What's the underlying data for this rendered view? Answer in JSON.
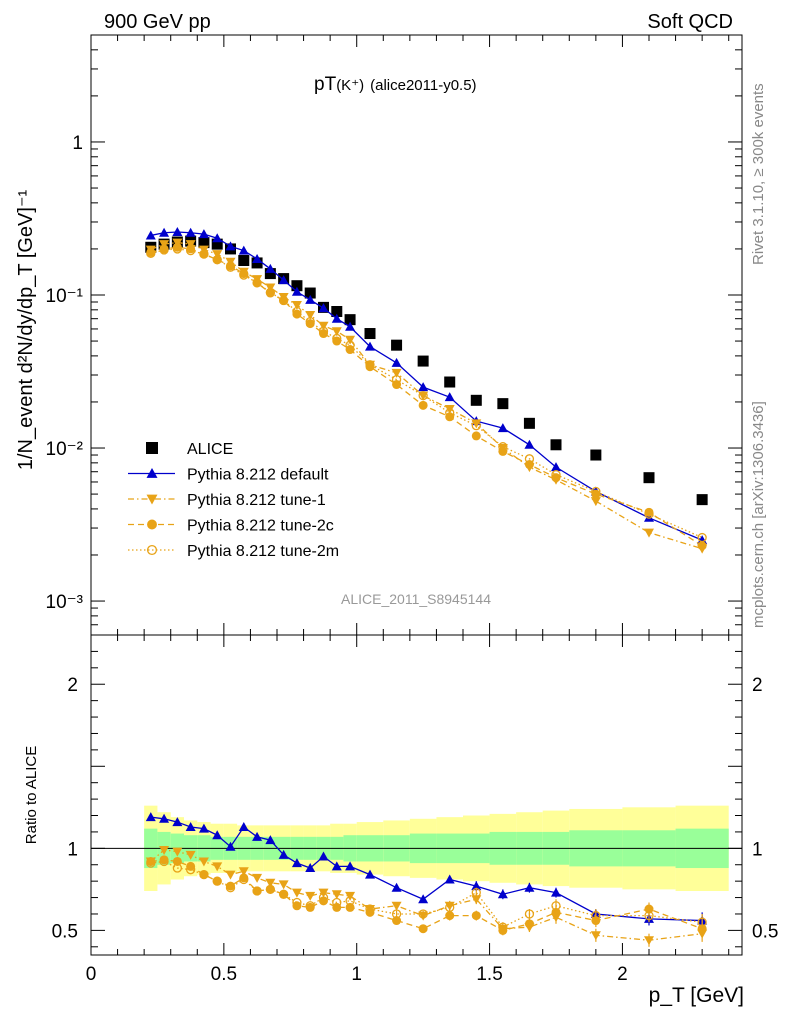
{
  "header": {
    "left": "900 GeV pp",
    "right": "Soft QCD"
  },
  "side_labels": {
    "rivet": "Rivet 3.1.10, ≥ 300k events",
    "mcplots": "mcplots.cern.ch [arXiv:1306.3436]"
  },
  "plot_title": {
    "main": "pT",
    "particle": "(K⁺)",
    "tag": "(alice2011-y0.5)"
  },
  "watermark": "ALICE_2011_S8945144",
  "axis_labels": {
    "y_top": "1/N_event d²N/dy/dp_T [GeV]⁻¹",
    "y_bottom": "Ratio to ALICE",
    "x": "p_T [GeV]"
  },
  "legend": [
    {
      "label": "ALICE",
      "marker": "square",
      "color": "#000000",
      "line": "none"
    },
    {
      "label": "Pythia 8.212 default",
      "marker": "triangle-up",
      "color": "#0000cc",
      "line": "solid"
    },
    {
      "label": "Pythia 8.212 tune-1",
      "marker": "triangle-down",
      "color": "#e8a317",
      "line": "dashdot"
    },
    {
      "label": "Pythia 8.212 tune-2c",
      "marker": "circle",
      "color": "#e8a317",
      "line": "dashed"
    },
    {
      "label": "Pythia 8.212 tune-2m",
      "marker": "circle-open",
      "color": "#e8a317",
      "line": "dotted"
    }
  ],
  "chart_data": [
    {
      "type": "scatter",
      "panel": "main",
      "yscale": "log",
      "xlim": [
        0,
        2.45
      ],
      "ylim": [
        0.0006,
        5
      ],
      "y_ticks": [
        {
          "v": 1,
          "label": "1"
        },
        {
          "v": 0.1,
          "label": "10⁻¹"
        },
        {
          "v": 0.01,
          "label": "10⁻²"
        },
        {
          "v": 0.001,
          "label": "10⁻³"
        }
      ],
      "x": [
        0.225,
        0.275,
        0.325,
        0.375,
        0.425,
        0.475,
        0.525,
        0.575,
        0.625,
        0.675,
        0.725,
        0.775,
        0.825,
        0.875,
        0.925,
        0.975,
        1.05,
        1.15,
        1.25,
        1.35,
        1.45,
        1.55,
        1.65,
        1.75,
        1.9,
        2.1,
        2.3
      ],
      "series": [
        {
          "name": "ALICE",
          "values": [
            0.205,
            0.215,
            0.222,
            0.225,
            0.22,
            0.215,
            0.2,
            0.168,
            0.162,
            0.138,
            0.128,
            0.115,
            0.103,
            0.083,
            0.078,
            0.069,
            0.056,
            0.047,
            0.037,
            0.027,
            0.0205,
            0.0195,
            0.0145,
            0.0105,
            0.009,
            0.0064,
            0.0046
          ]
        },
        {
          "name": "Pythia 8.212 default",
          "values": [
            0.245,
            0.255,
            0.258,
            0.255,
            0.25,
            0.235,
            0.208,
            0.195,
            0.172,
            0.148,
            0.125,
            0.105,
            0.093,
            0.082,
            0.07,
            0.062,
            0.046,
            0.036,
            0.025,
            0.0215,
            0.015,
            0.0135,
            0.0105,
            0.0075,
            0.0052,
            0.0035,
            0.0025
          ]
        },
        {
          "name": "Pythia 8.212 tune-1",
          "values": [
            0.198,
            0.215,
            0.22,
            0.215,
            0.198,
            0.185,
            0.165,
            0.142,
            0.127,
            0.112,
            0.097,
            0.086,
            0.074,
            0.063,
            0.058,
            0.051,
            0.035,
            0.031,
            0.022,
            0.018,
            0.0145,
            0.01,
            0.0075,
            0.0062,
            0.0045,
            0.0028,
            0.0022
          ]
        },
        {
          "name": "Pythia 8.212 tune-2c",
          "values": [
            0.19,
            0.2,
            0.205,
            0.2,
            0.185,
            0.17,
            0.155,
            0.138,
            0.12,
            0.103,
            0.092,
            0.075,
            0.065,
            0.056,
            0.05,
            0.044,
            0.034,
            0.026,
            0.019,
            0.016,
            0.012,
            0.0095,
            0.0078,
            0.0064,
            0.005,
            0.0038,
            0.0023
          ]
        },
        {
          "name": "Pythia 8.212 tune-2m",
          "values": [
            0.187,
            0.197,
            0.2,
            0.195,
            0.185,
            0.17,
            0.152,
            0.135,
            0.12,
            0.104,
            0.092,
            0.078,
            0.067,
            0.058,
            0.052,
            0.047,
            0.035,
            0.028,
            0.022,
            0.017,
            0.014,
            0.0102,
            0.0085,
            0.0067,
            0.0052,
            0.0037,
            0.0026
          ]
        }
      ]
    },
    {
      "type": "scatter",
      "panel": "ratio",
      "xlim": [
        0,
        2.45
      ],
      "ylim": [
        0.35,
        2.3
      ],
      "x_ticks": [
        0,
        0.5,
        1,
        1.5,
        2
      ],
      "x_tick_labels": [
        "0",
        "0.5",
        "1",
        "1.5",
        "2"
      ],
      "y_ticks": [
        0.5,
        1,
        2
      ],
      "y_tick_labels": [
        "0.5",
        "1",
        "2"
      ],
      "reference_line": 1,
      "bins": [
        [
          0.2,
          0.25
        ],
        [
          0.25,
          0.3
        ],
        [
          0.3,
          0.35
        ],
        [
          0.35,
          0.4
        ],
        [
          0.4,
          0.45
        ],
        [
          0.45,
          0.5
        ],
        [
          0.5,
          0.55
        ],
        [
          0.55,
          0.6
        ],
        [
          0.6,
          0.65
        ],
        [
          0.65,
          0.7
        ],
        [
          0.7,
          0.75
        ],
        [
          0.75,
          0.8
        ],
        [
          0.8,
          0.85
        ],
        [
          0.85,
          0.9
        ],
        [
          0.9,
          0.95
        ],
        [
          0.95,
          1.0
        ],
        [
          1.0,
          1.1
        ],
        [
          1.1,
          1.2
        ],
        [
          1.2,
          1.3
        ],
        [
          1.3,
          1.4
        ],
        [
          1.4,
          1.5
        ],
        [
          1.5,
          1.6
        ],
        [
          1.6,
          1.7
        ],
        [
          1.7,
          1.8
        ],
        [
          1.8,
          2.0
        ],
        [
          2.0,
          2.2
        ],
        [
          2.2,
          2.4
        ]
      ],
      "band_outer": [
        0.26,
        0.22,
        0.19,
        0.17,
        0.16,
        0.15,
        0.15,
        0.14,
        0.14,
        0.14,
        0.14,
        0.14,
        0.14,
        0.14,
        0.15,
        0.15,
        0.16,
        0.17,
        0.18,
        0.19,
        0.2,
        0.21,
        0.22,
        0.23,
        0.24,
        0.25,
        0.26
      ],
      "band_inner": [
        0.12,
        0.1,
        0.09,
        0.08,
        0.08,
        0.07,
        0.07,
        0.07,
        0.07,
        0.07,
        0.07,
        0.07,
        0.07,
        0.07,
        0.07,
        0.08,
        0.08,
        0.08,
        0.09,
        0.09,
        0.09,
        0.1,
        0.1,
        0.1,
        0.11,
        0.11,
        0.12
      ],
      "band_colors": {
        "outer": "#ffff99",
        "inner": "#99ff99"
      },
      "x": [
        0.225,
        0.275,
        0.325,
        0.375,
        0.425,
        0.475,
        0.525,
        0.575,
        0.625,
        0.675,
        0.725,
        0.775,
        0.825,
        0.875,
        0.925,
        0.975,
        1.05,
        1.15,
        1.25,
        1.35,
        1.45,
        1.55,
        1.65,
        1.75,
        1.9,
        2.1,
        2.3
      ],
      "series": [
        {
          "name": "Pythia 8.212 default",
          "values": [
            1.19,
            1.18,
            1.16,
            1.13,
            1.12,
            1.08,
            1.01,
            1.13,
            1.07,
            1.05,
            0.96,
            0.91,
            0.88,
            0.95,
            0.89,
            0.89,
            0.84,
            0.76,
            0.69,
            0.81,
            0.77,
            0.72,
            0.76,
            0.73,
            0.6,
            0.57,
            0.56
          ],
          "errors": [
            0.01,
            0.01,
            0.01,
            0.01,
            0.01,
            0.01,
            0.01,
            0.01,
            0.01,
            0.01,
            0.01,
            0.01,
            0.01,
            0.01,
            0.01,
            0.01,
            0.01,
            0.02,
            0.02,
            0.02,
            0.03,
            0.03,
            0.03,
            0.03,
            0.03,
            0.04,
            0.05
          ]
        },
        {
          "name": "Pythia 8.212 tune-1",
          "values": [
            0.92,
            0.99,
            0.98,
            0.96,
            0.92,
            0.89,
            0.84,
            0.86,
            0.82,
            0.79,
            0.78,
            0.73,
            0.71,
            0.73,
            0.72,
            0.71,
            0.63,
            0.65,
            0.59,
            0.65,
            0.69,
            0.51,
            0.52,
            0.58,
            0.47,
            0.44,
            0.48
          ],
          "errors": [
            0.01,
            0.01,
            0.01,
            0.01,
            0.01,
            0.01,
            0.01,
            0.01,
            0.01,
            0.01,
            0.01,
            0.01,
            0.01,
            0.01,
            0.01,
            0.01,
            0.02,
            0.02,
            0.02,
            0.03,
            0.03,
            0.03,
            0.03,
            0.04,
            0.04,
            0.04,
            0.05
          ]
        },
        {
          "name": "Pythia 8.212 tune-2c",
          "values": [
            0.92,
            0.93,
            0.92,
            0.89,
            0.84,
            0.8,
            0.77,
            0.82,
            0.74,
            0.75,
            0.72,
            0.65,
            0.64,
            0.68,
            0.64,
            0.64,
            0.61,
            0.56,
            0.51,
            0.59,
            0.59,
            0.5,
            0.54,
            0.61,
            0.56,
            0.63,
            0.51
          ],
          "errors": [
            0.01,
            0.01,
            0.01,
            0.01,
            0.01,
            0.01,
            0.01,
            0.01,
            0.01,
            0.01,
            0.01,
            0.01,
            0.01,
            0.01,
            0.01,
            0.01,
            0.02,
            0.02,
            0.02,
            0.03,
            0.03,
            0.03,
            0.03,
            0.04,
            0.04,
            0.04,
            0.05
          ]
        },
        {
          "name": "Pythia 8.212 tune-2m",
          "values": [
            0.91,
            0.92,
            0.88,
            0.87,
            0.84,
            0.8,
            0.76,
            0.81,
            0.74,
            0.75,
            0.72,
            0.67,
            0.65,
            0.7,
            0.67,
            0.68,
            0.63,
            0.6,
            0.6,
            0.64,
            0.73,
            0.52,
            0.6,
            0.65,
            0.59,
            0.59,
            0.55
          ],
          "errors": [
            0.01,
            0.01,
            0.01,
            0.01,
            0.01,
            0.01,
            0.01,
            0.01,
            0.01,
            0.01,
            0.01,
            0.01,
            0.01,
            0.01,
            0.01,
            0.01,
            0.02,
            0.02,
            0.02,
            0.03,
            0.03,
            0.03,
            0.03,
            0.04,
            0.04,
            0.04,
            0.05
          ]
        }
      ]
    }
  ]
}
